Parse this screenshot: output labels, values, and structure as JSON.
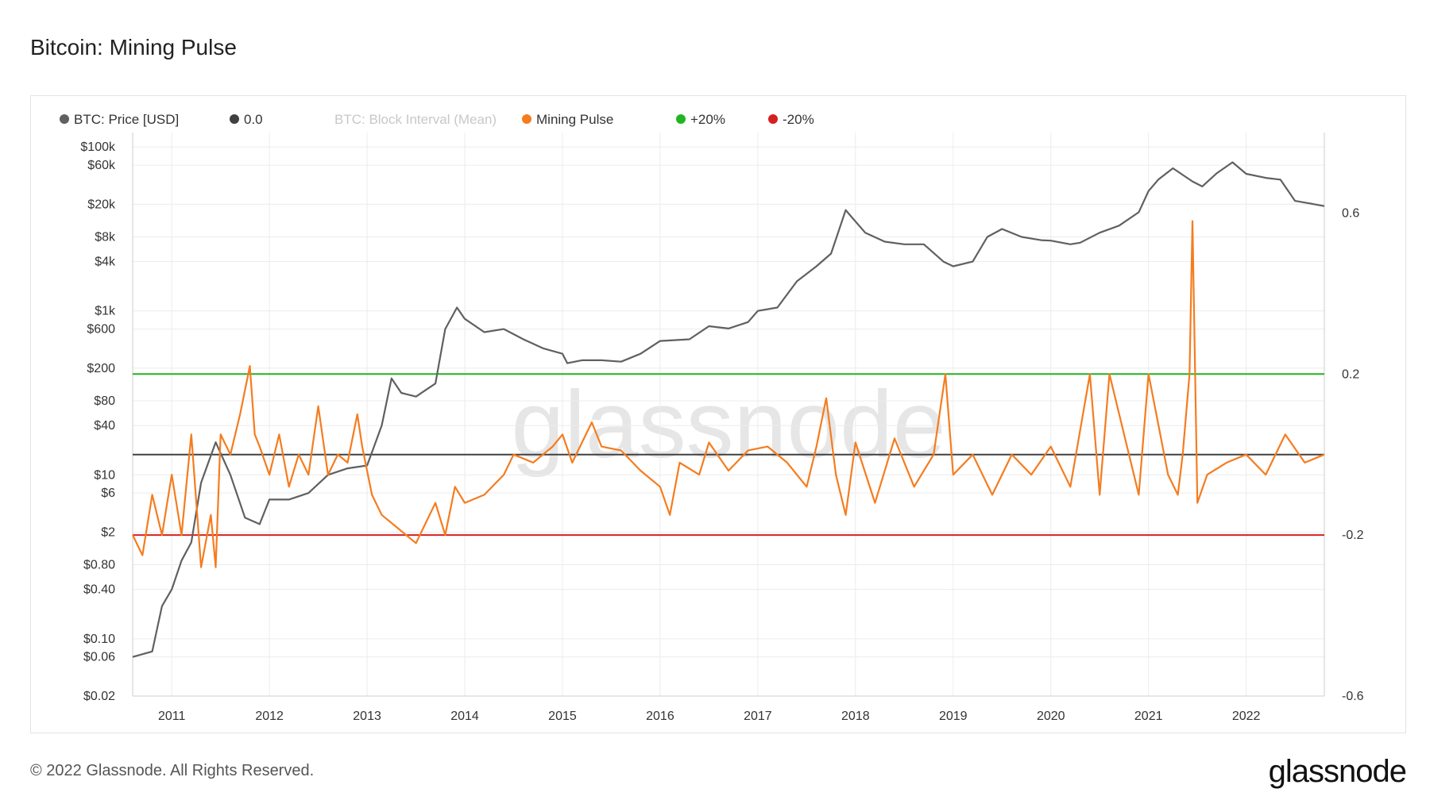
{
  "title": "Bitcoin: Mining Pulse",
  "footer": {
    "copyright": "© 2022 Glassnode. All Rights Reserved.",
    "logo": "glassnode"
  },
  "watermark": "glassnode",
  "colors": {
    "price": "#606060",
    "zero": "#404040",
    "pulse": "#f57c1f",
    "plus20": "#1fb61f",
    "minus20": "#d42020",
    "block_interval": "#cfcfcf",
    "grid": "#ececec"
  },
  "chart_data": {
    "type": "line",
    "title": "Bitcoin: Mining Pulse",
    "legend": [
      {
        "name": "BTC: Price [USD]",
        "color": "#606060",
        "visible": true
      },
      {
        "name": "0.0",
        "color": "#404040",
        "visible": true
      },
      {
        "name": "BTC: Block Interval (Mean)",
        "color": "#cfcfcf",
        "visible": false
      },
      {
        "name": "Mining Pulse",
        "color": "#f57c1f",
        "visible": true
      },
      {
        "name": "+20%",
        "color": "#1fb61f",
        "visible": true
      },
      {
        "name": "-20%",
        "color": "#d42020",
        "visible": true
      }
    ],
    "legend_placement": "top-left",
    "x_range": [
      2010.6,
      2022.8
    ],
    "x_ticks": [
      "2011",
      "2012",
      "2013",
      "2014",
      "2015",
      "2016",
      "2017",
      "2018",
      "2019",
      "2020",
      "2021",
      "2022"
    ],
    "y_left": {
      "scale": "log",
      "range": [
        0.02,
        150000
      ],
      "ticks": [
        {
          "label": "$100k",
          "value": 100000
        },
        {
          "label": "$60k",
          "value": 60000
        },
        {
          "label": "$20k",
          "value": 20000
        },
        {
          "label": "$8k",
          "value": 8000
        },
        {
          "label": "$4k",
          "value": 4000
        },
        {
          "label": "$1k",
          "value": 1000
        },
        {
          "label": "$600",
          "value": 600
        },
        {
          "label": "$200",
          "value": 200
        },
        {
          "label": "$80",
          "value": 80
        },
        {
          "label": "$40",
          "value": 40
        },
        {
          "label": "$10",
          "value": 10
        },
        {
          "label": "$6",
          "value": 6
        },
        {
          "label": "$2",
          "value": 2
        },
        {
          "label": "$0.80",
          "value": 0.8
        },
        {
          "label": "$0.40",
          "value": 0.4
        },
        {
          "label": "$0.10",
          "value": 0.1
        },
        {
          "label": "$0.06",
          "value": 0.06
        },
        {
          "label": "$0.02",
          "value": 0.02
        }
      ]
    },
    "y_right": {
      "scale": "linear",
      "range": [
        -0.6,
        0.8
      ],
      "ticks": [
        {
          "label": "0.6",
          "value": 0.6
        },
        {
          "label": "0.2",
          "value": 0.2
        },
        {
          "label": "-0.2",
          "value": -0.2
        },
        {
          "label": "-0.6",
          "value": -0.6
        }
      ]
    },
    "reference_lines": [
      {
        "name": "0.0",
        "value": 0.0,
        "color": "#404040"
      },
      {
        "name": "+20%",
        "value": 0.2,
        "color": "#1fb61f"
      },
      {
        "name": "-20%",
        "value": -0.2,
        "color": "#d42020"
      }
    ],
    "series": [
      {
        "name": "BTC: Price [USD]",
        "axis": "left",
        "color": "#606060",
        "x": [
          2010.6,
          2010.8,
          2010.9,
          2011.0,
          2011.1,
          2011.2,
          2011.3,
          2011.45,
          2011.6,
          2011.75,
          2011.9,
          2012.0,
          2012.2,
          2012.4,
          2012.6,
          2012.8,
          2013.0,
          2013.15,
          2013.25,
          2013.35,
          2013.5,
          2013.7,
          2013.8,
          2013.92,
          2014.0,
          2014.2,
          2014.4,
          2014.6,
          2014.8,
          2015.0,
          2015.05,
          2015.2,
          2015.4,
          2015.6,
          2015.8,
          2016.0,
          2016.3,
          2016.5,
          2016.7,
          2016.9,
          2017.0,
          2017.2,
          2017.4,
          2017.6,
          2017.75,
          2017.9,
          2017.96,
          2018.1,
          2018.3,
          2018.5,
          2018.7,
          2018.9,
          2019.0,
          2019.2,
          2019.35,
          2019.5,
          2019.7,
          2019.9,
          2020.0,
          2020.2,
          2020.3,
          2020.5,
          2020.7,
          2020.9,
          2021.0,
          2021.1,
          2021.25,
          2021.45,
          2021.55,
          2021.7,
          2021.86,
          2022.0,
          2022.2,
          2022.35,
          2022.5,
          2022.7,
          2022.8
        ],
        "y": [
          0.06,
          0.07,
          0.25,
          0.4,
          0.9,
          1.5,
          8,
          25,
          10,
          3,
          2.5,
          5,
          5,
          6,
          10,
          12,
          13,
          40,
          150,
          100,
          90,
          130,
          600,
          1100,
          800,
          550,
          600,
          450,
          350,
          300,
          230,
          250,
          250,
          240,
          300,
          430,
          450,
          650,
          610,
          730,
          1000,
          1100,
          2300,
          3500,
          5000,
          17000,
          14000,
          9000,
          7000,
          6500,
          6500,
          4000,
          3500,
          4000,
          8000,
          10000,
          8000,
          7300,
          7200,
          6500,
          6800,
          9000,
          11000,
          16000,
          29000,
          40000,
          55000,
          38000,
          33000,
          48000,
          65000,
          47000,
          42000,
          40000,
          22000,
          20000,
          19000
        ]
      },
      {
        "name": "Mining Pulse",
        "axis": "right",
        "color": "#f57c1f",
        "x": [
          2010.6,
          2010.7,
          2010.8,
          2010.9,
          2011.0,
          2011.1,
          2011.2,
          2011.3,
          2011.4,
          2011.45,
          2011.5,
          2011.6,
          2011.7,
          2011.8,
          2011.85,
          2011.9,
          2012.0,
          2012.1,
          2012.2,
          2012.3,
          2012.4,
          2012.5,
          2012.6,
          2012.7,
          2012.8,
          2012.9,
          2012.95,
          2013.05,
          2013.15,
          2013.3,
          2013.5,
          2013.7,
          2013.8,
          2013.9,
          2014.0,
          2014.2,
          2014.4,
          2014.5,
          2014.7,
          2014.9,
          2015.0,
          2015.1,
          2015.3,
          2015.4,
          2015.6,
          2015.8,
          2016.0,
          2016.1,
          2016.2,
          2016.4,
          2016.5,
          2016.7,
          2016.9,
          2017.1,
          2017.3,
          2017.5,
          2017.6,
          2017.7,
          2017.8,
          2017.9,
          2018.0,
          2018.2,
          2018.4,
          2018.6,
          2018.8,
          2018.92,
          2019.0,
          2019.2,
          2019.4,
          2019.6,
          2019.8,
          2020.0,
          2020.2,
          2020.4,
          2020.5,
          2020.6,
          2020.8,
          2020.9,
          2021.0,
          2021.2,
          2021.3,
          2021.35,
          2021.42,
          2021.45,
          2021.5,
          2021.6,
          2021.8,
          2022.0,
          2022.2,
          2022.4,
          2022.6,
          2022.8
        ],
        "y": [
          -0.2,
          -0.25,
          -0.1,
          -0.2,
          -0.05,
          -0.2,
          0.05,
          -0.28,
          -0.15,
          -0.28,
          0.05,
          0.0,
          0.1,
          0.22,
          0.05,
          0.02,
          -0.05,
          0.05,
          -0.08,
          0.0,
          -0.05,
          0.12,
          -0.05,
          0.0,
          -0.02,
          0.1,
          0.02,
          -0.1,
          -0.15,
          -0.18,
          -0.22,
          -0.12,
          -0.2,
          -0.08,
          -0.12,
          -0.1,
          -0.05,
          0.0,
          -0.02,
          0.02,
          0.05,
          -0.02,
          0.08,
          0.02,
          0.01,
          -0.04,
          -0.08,
          -0.15,
          -0.02,
          -0.05,
          0.03,
          -0.04,
          0.01,
          0.02,
          -0.02,
          -0.08,
          0.02,
          0.14,
          -0.05,
          -0.15,
          0.03,
          -0.12,
          0.04,
          -0.08,
          0.0,
          0.2,
          -0.05,
          0.0,
          -0.1,
          0.0,
          -0.05,
          0.02,
          -0.08,
          0.2,
          -0.1,
          0.2,
          0.0,
          -0.1,
          0.2,
          -0.05,
          -0.1,
          0.0,
          0.2,
          0.58,
          -0.12,
          -0.05,
          -0.02,
          0.0,
          -0.05,
          0.05,
          -0.02,
          0.0
        ]
      }
    ]
  }
}
